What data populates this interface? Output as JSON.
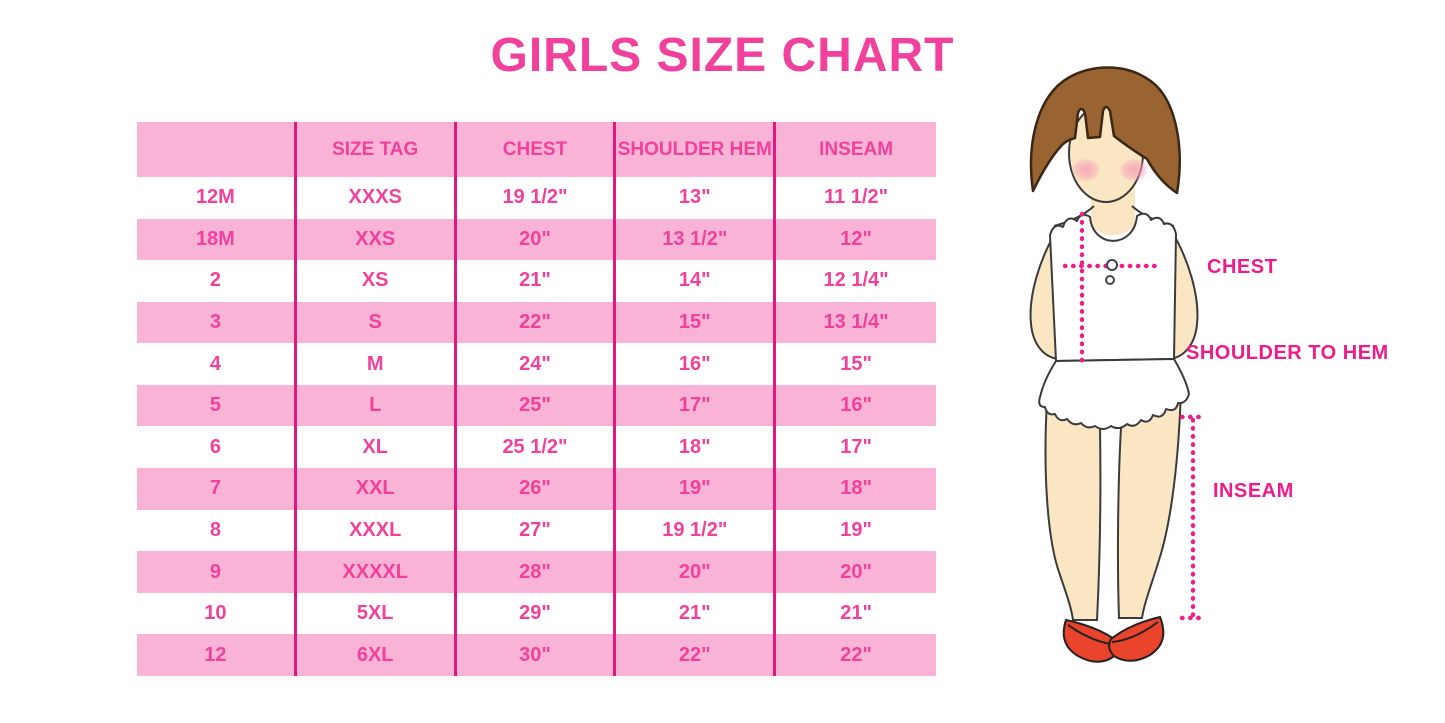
{
  "title": "GIRLS SIZE CHART",
  "chart_data": {
    "type": "table",
    "title": "GIRLS SIZE CHART",
    "columns": [
      "",
      "SIZE TAG",
      "CHEST",
      "SHOULDER HEM",
      "INSEAM"
    ],
    "rows": [
      [
        "12M",
        "XXXS",
        "19 1/2\"",
        "13\"",
        "11 1/2\""
      ],
      [
        "18M",
        "XXS",
        "20\"",
        "13 1/2\"",
        "12\""
      ],
      [
        "2",
        "XS",
        "21\"",
        "14\"",
        "12 1/4\""
      ],
      [
        "3",
        "S",
        "22\"",
        "15\"",
        "13 1/4\""
      ],
      [
        "4",
        "M",
        "24\"",
        "16\"",
        "15\""
      ],
      [
        "5",
        "L",
        "25\"",
        "17\"",
        "16\""
      ],
      [
        "6",
        "XL",
        "25 1/2\"",
        "18\"",
        "17\""
      ],
      [
        "7",
        "XXL",
        "26\"",
        "19\"",
        "18\""
      ],
      [
        "8",
        "XXXL",
        "27\"",
        "19 1/2\"",
        "19\""
      ],
      [
        "9",
        "XXXXL",
        "28\"",
        "20\"",
        "20\""
      ],
      [
        "10",
        "5XL",
        "29\"",
        "21\"",
        "21\""
      ],
      [
        "12",
        "6XL",
        "30\"",
        "22\"",
        "22\""
      ]
    ],
    "layout": {
      "header_fill": "pink",
      "alternating_rows": "pink/white",
      "grid": "vertical magenta dividers only"
    }
  },
  "diagram": {
    "chest_label": "CHEST",
    "shoulder_label": "SHOULDER TO HEM",
    "inseam_label": "INSEAM"
  },
  "colors": {
    "pink_fill": "#F9B3D7",
    "magenta_line": "#E1187F",
    "pink_text": "#F2419C",
    "label_text": "#EE1B8D",
    "dotted_pink": "#ED1E8C",
    "hair_brown": "#9A6332",
    "skin": "#FBE6C3",
    "shoe_red": "#EA452C"
  }
}
